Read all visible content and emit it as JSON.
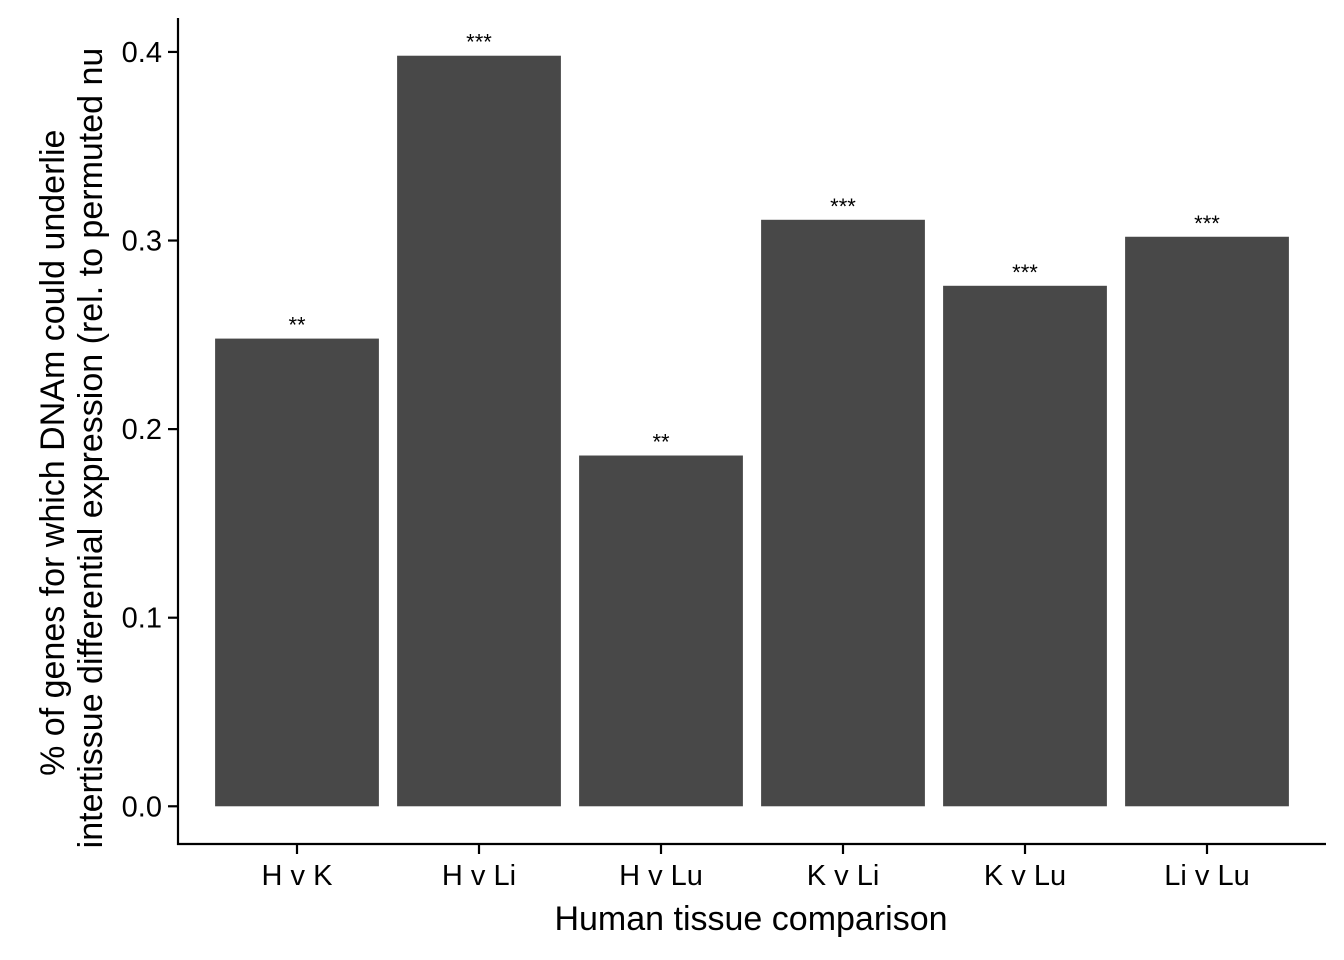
{
  "chart_data": {
    "type": "bar",
    "categories": [
      "H v K",
      "H v Li",
      "H v Lu",
      "K v Li",
      "K v Lu",
      "Li v Lu"
    ],
    "values": [
      0.248,
      0.398,
      0.186,
      0.311,
      0.276,
      0.302
    ],
    "annotations": [
      "**",
      "***",
      "**",
      "***",
      "***",
      "***"
    ],
    "xlabel": "Human tissue comparison",
    "ylabel_lines": [
      "% of genes for which DNAm could underlie",
      "intertissue differential expression (rel. to permuted nu"
    ],
    "yticks": [
      "0.0",
      "0.1",
      "0.2",
      "0.3",
      "0.4"
    ],
    "ylim": [
      -0.02,
      0.418
    ],
    "grid": false,
    "bar_color": "#484848"
  }
}
